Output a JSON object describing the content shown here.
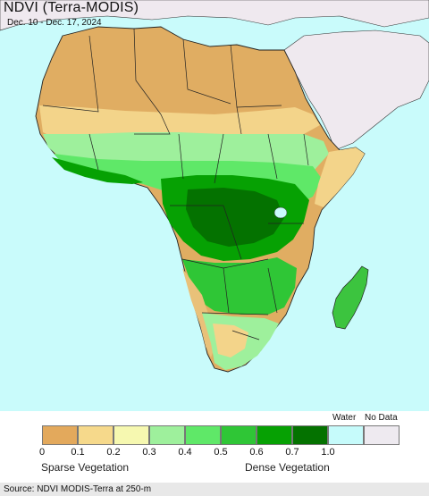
{
  "header": {
    "title": "NDVI (Terra-MODIS)",
    "date_range": "Dec. 10 - Dec. 17, 2024"
  },
  "map": {
    "region": "Africa",
    "colors": {
      "ocean": "#c9fbfb",
      "non_africa_land": "#efe9ef",
      "borders": "#222222"
    }
  },
  "legend": {
    "bins": [
      {
        "color": "#e3a95c"
      },
      {
        "color": "#f6d98b"
      },
      {
        "color": "#f6f8b0"
      },
      {
        "color": "#9ef09c"
      },
      {
        "color": "#5fe868"
      },
      {
        "color": "#2fc636"
      },
      {
        "color": "#06a103"
      },
      {
        "color": "#047200"
      },
      {
        "color": "#c6fbfb"
      },
      {
        "color": "#eeeaf0"
      }
    ],
    "ticks": [
      "0",
      "0.1",
      "0.2",
      "0.3",
      "0.4",
      "0.5",
      "0.6",
      "0.7",
      "1.0"
    ],
    "water_label": "Water",
    "nodata_label": "No Data",
    "sparse_label": "Sparse Vegetation",
    "dense_label": "Dense Vegetation"
  },
  "footer": {
    "source": "Source: NDVI MODIS-Terra at 250-m"
  }
}
